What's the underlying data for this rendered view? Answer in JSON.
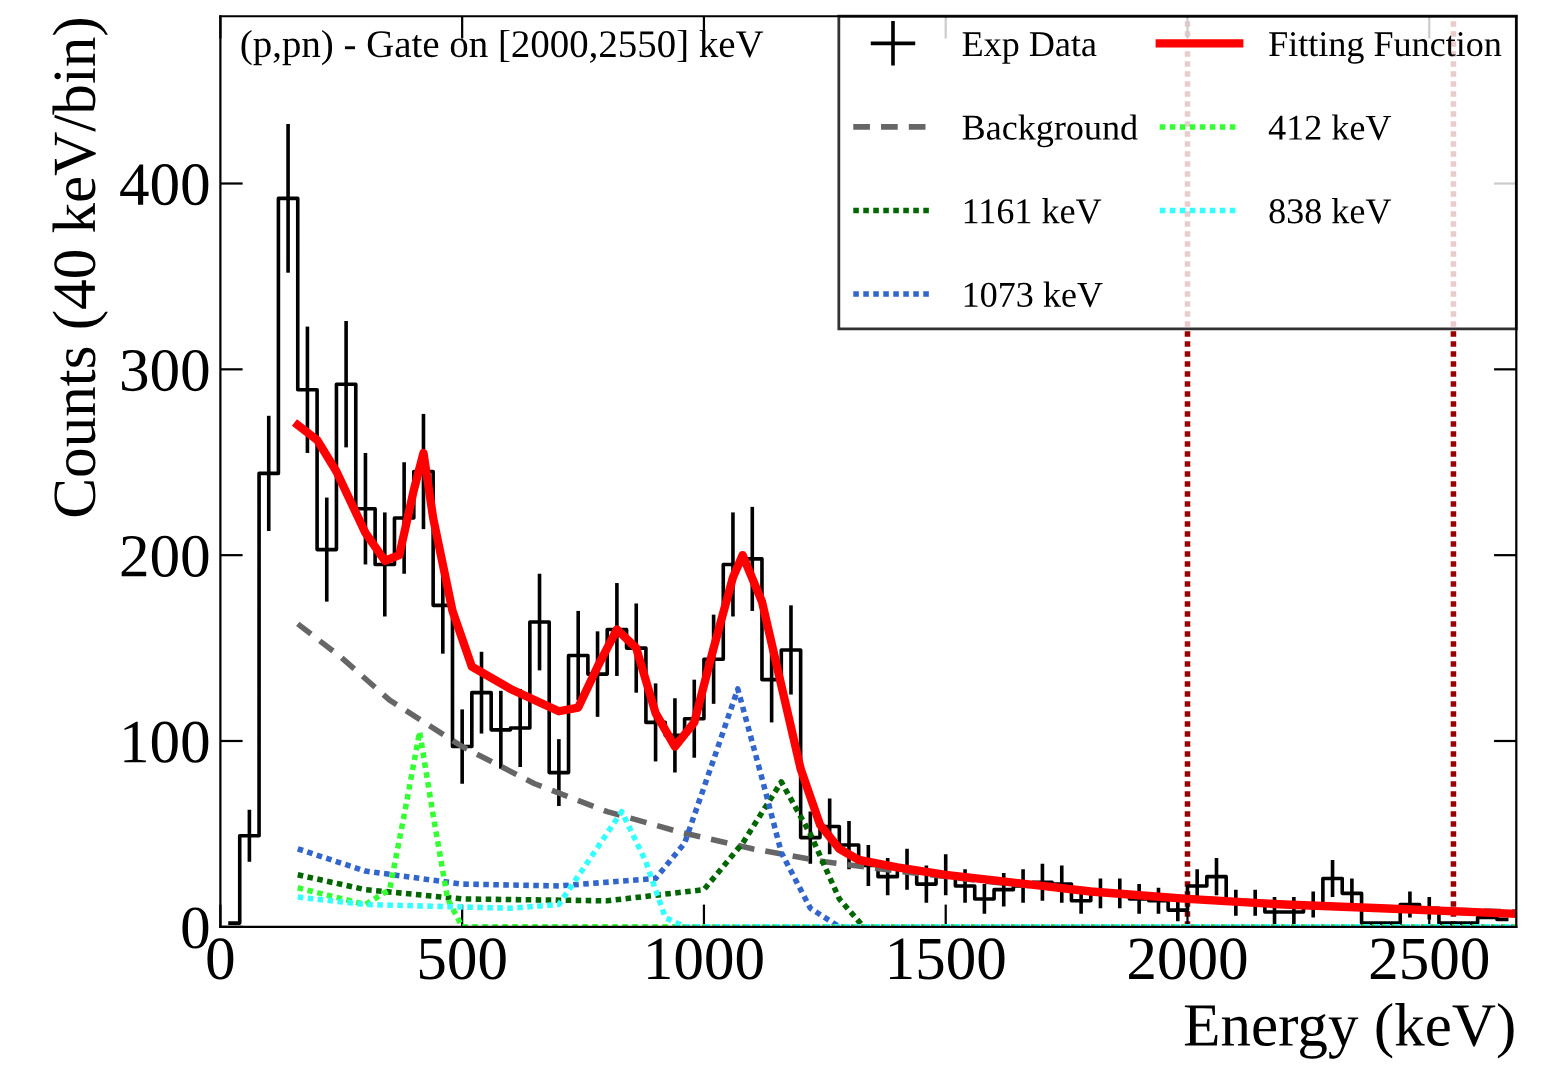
{
  "chart_data": {
    "type": "step",
    "title": "(p,pn) - Gate on [2000,2550] keV",
    "xlabel": "Energy (keV)",
    "ylabel": "Counts (40 keV/bin)",
    "xlim": [
      0,
      2680
    ],
    "ylim": [
      0,
      490
    ],
    "xticks": [
      0,
      500,
      1000,
      1500,
      2000,
      2500
    ],
    "yticks": [
      0,
      100,
      200,
      300,
      400
    ],
    "grid": false,
    "legend": "top right",
    "series": [
      {
        "name": "Exp Data",
        "color": "#000000",
        "x": [
          20,
          60,
          100,
          140,
          180,
          220,
          260,
          300,
          340,
          380,
          420,
          460,
          500,
          540,
          580,
          620,
          660,
          700,
          740,
          780,
          820,
          860,
          900,
          940,
          980,
          1020,
          1060,
          1100,
          1140,
          1180,
          1220,
          1260,
          1300,
          1340,
          1380,
          1420,
          1460,
          1500,
          1540,
          1580,
          1620,
          1660,
          1700,
          1740,
          1780,
          1820,
          1860,
          1900,
          1940,
          1980,
          2020,
          2060,
          2100,
          2140,
          2180,
          2220,
          2260,
          2300,
          2340,
          2380,
          2420,
          2460,
          2500,
          2540,
          2580,
          2620,
          2660
        ],
        "values": [
          2,
          49,
          244,
          392,
          289,
          203,
          292,
          225,
          195,
          220,
          245,
          173,
          97,
          126,
          106,
          107,
          164,
          83,
          146,
          136,
          160,
          150,
          110,
          103,
          112,
          144,
          195,
          198,
          133,
          149,
          48,
          54,
          44,
          33,
          27,
          31,
          23,
          28,
          22,
          15,
          20,
          22,
          24,
          23,
          14,
          18,
          18,
          15,
          14,
          9,
          22,
          27,
          13,
          13,
          8,
          8,
          12,
          26,
          18,
          2,
          2,
          12,
          10,
          2,
          2,
          5,
          4
        ],
        "errors": [
          null,
          14,
          31,
          40,
          34,
          28,
          34,
          30,
          28,
          30,
          31,
          26,
          20,
          22,
          21,
          21,
          26,
          18,
          24,
          23,
          25,
          24,
          21,
          20,
          21,
          24,
          28,
          28,
          23,
          24,
          14,
          15,
          13,
          11,
          10,
          11,
          10,
          11,
          9,
          8,
          9,
          9,
          10,
          10,
          7,
          8,
          8,
          8,
          7,
          6,
          9,
          10,
          7,
          7,
          8,
          8,
          7,
          10,
          8,
          null,
          null,
          7,
          6,
          null,
          null,
          null,
          null
        ]
      },
      {
        "type": "line",
        "name": "Background",
        "color": "#666666",
        "line_style": "dashed",
        "x": [
          160,
          250,
          350,
          500,
          650,
          800,
          950,
          1100,
          1250,
          1400,
          1600,
          1800,
          2100,
          2400,
          2680
        ],
        "values": [
          163,
          145,
          122,
          97,
          77,
          62,
          51,
          42,
          35,
          30,
          24,
          19,
          14,
          10,
          8
        ]
      },
      {
        "type": "line",
        "name": "1161 keV",
        "color": "#006600",
        "line_style": "dotted",
        "x": [
          160,
          300,
          500,
          800,
          1000,
          1080,
          1160,
          1220,
          1280,
          1330,
          2680
        ],
        "values": [
          28,
          20,
          15,
          14,
          20,
          45,
          78,
          50,
          15,
          0,
          0
        ]
      },
      {
        "type": "line",
        "name": "1073 keV",
        "color": "#3366cc",
        "line_style": "dotted",
        "x": [
          160,
          300,
          500,
          700,
          900,
          960,
          1020,
          1070,
          1120,
          1160,
          1220,
          1280,
          2680
        ],
        "values": [
          42,
          30,
          23,
          22,
          26,
          45,
          90,
          128,
          80,
          40,
          10,
          0,
          0
        ]
      },
      {
        "type": "line",
        "name": "Fitting Function",
        "color": "#ff0000",
        "line_style": "solid",
        "x": [
          160,
          200,
          240,
          300,
          340,
          370,
          400,
          420,
          440,
          480,
          520,
          600,
          700,
          740,
          780,
          820,
          860,
          900,
          940,
          980,
          1020,
          1060,
          1080,
          1120,
          1160,
          1200,
          1240,
          1280,
          1320,
          1400,
          1500,
          1600,
          1700,
          1800,
          1900,
          2000,
          2200,
          2400,
          2680
        ],
        "values": [
          270,
          262,
          245,
          212,
          197,
          200,
          235,
          255,
          220,
          170,
          140,
          128,
          116,
          118,
          140,
          160,
          150,
          115,
          97,
          110,
          150,
          188,
          200,
          175,
          130,
          85,
          55,
          42,
          36,
          32,
          28,
          25,
          22,
          19,
          17,
          15,
          12,
          10,
          7
        ]
      },
      {
        "type": "line",
        "name": "412 keV",
        "color": "#33ff33",
        "line_style": "dotted",
        "x": [
          160,
          300,
          350,
          380,
          412,
          440,
          470,
          500,
          2680
        ],
        "values": [
          21,
          12,
          20,
          60,
          105,
          60,
          15,
          0,
          0
        ]
      },
      {
        "type": "line",
        "name": "838 keV",
        "color": "#33ffff",
        "line_style": "dotted",
        "x": [
          160,
          300,
          600,
          700,
          760,
          830,
          880,
          920,
          960,
          2680
        ],
        "values": [
          16,
          12,
          10,
          12,
          35,
          62,
          35,
          5,
          0,
          0
        ]
      }
    ],
    "ref_lines": [
      {
        "axis": "x",
        "value": 2000,
        "color": "#990000",
        "line_style": "dotted"
      },
      {
        "axis": "x",
        "value": 2550,
        "color": "#990000",
        "line_style": "dotted"
      }
    ]
  }
}
